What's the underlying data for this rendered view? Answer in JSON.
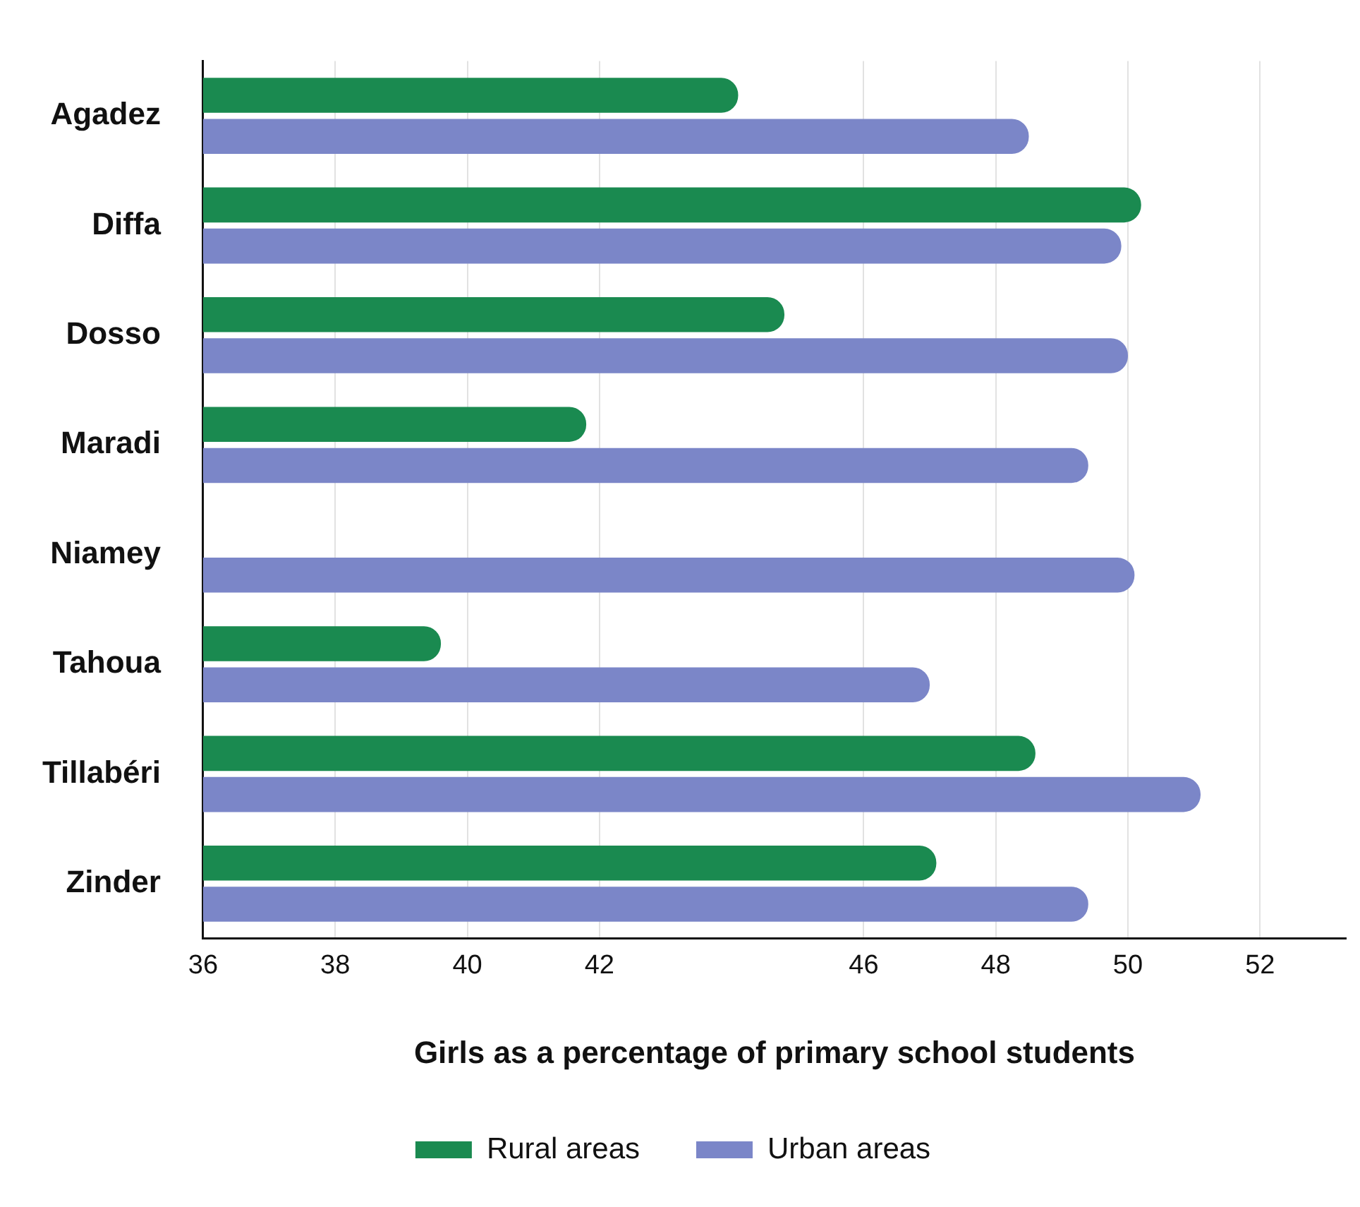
{
  "chart_data": {
    "type": "bar",
    "orientation": "horizontal",
    "xlabel": "Girls as a percentage of primary school students",
    "categories": [
      "Agadez",
      "Diffa",
      "Dosso",
      "Maradi",
      "Niamey",
      "Tahoua",
      "Tillabéri",
      "Zinder"
    ],
    "series": [
      {
        "name": "Rural areas",
        "color": "#1a8a50",
        "values": [
          44.1,
          50.2,
          44.8,
          41.8,
          null,
          39.6,
          48.6,
          47.1
        ]
      },
      {
        "name": "Urban areas",
        "color": "#7b86c8",
        "values": [
          48.5,
          49.9,
          50.0,
          49.4,
          50.1,
          47.0,
          51.1,
          49.4
        ]
      }
    ],
    "xlim": [
      36,
      53.3
    ],
    "xticks": [
      36,
      38,
      40,
      42,
      46,
      48,
      50,
      52
    ],
    "grid": "x",
    "legend": "bottom"
  }
}
